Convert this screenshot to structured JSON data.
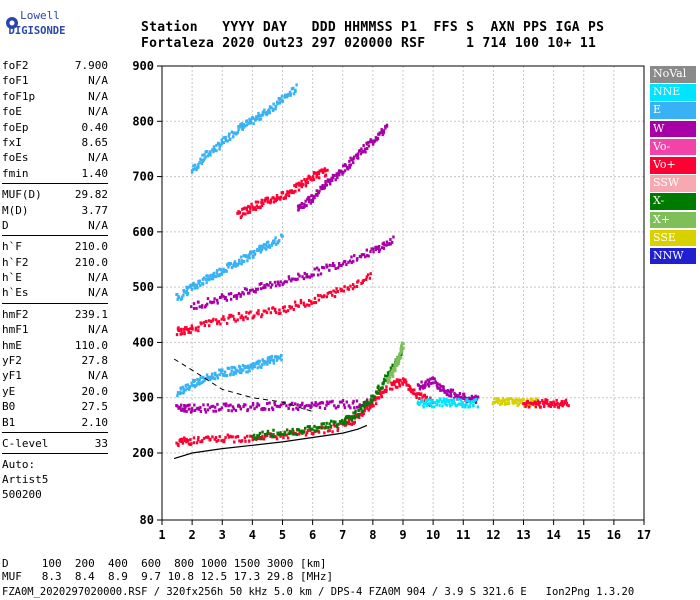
{
  "logo": {
    "line1": "Lowell",
    "line2": "DIGISONDE"
  },
  "header": {
    "line1": "Station   YYYY DAY   DDD HHMMSS P1  FFS S  AXN PPS IGA PS",
    "line2": "Fortaleza 2020 Out23 297 020000 RSF     1 714 100 10+ 11"
  },
  "params": {
    "group1": [
      {
        "name": "foF2",
        "value": "7.900"
      },
      {
        "name": "foF1",
        "value": "N/A"
      },
      {
        "name": "foF1p",
        "value": "N/A"
      },
      {
        "name": "foE",
        "value": "N/A"
      },
      {
        "name": "foEp",
        "value": "0.40"
      },
      {
        "name": "fxI",
        "value": "8.65"
      },
      {
        "name": "foEs",
        "value": "N/A"
      },
      {
        "name": "fmin",
        "value": "1.40"
      }
    ],
    "group2": [
      {
        "name": "MUF(D)",
        "value": "29.82"
      },
      {
        "name": "M(D)",
        "value": "3.77"
      },
      {
        "name": "D",
        "value": "N/A"
      }
    ],
    "group3": [
      {
        "name": "h`F",
        "value": "210.0"
      },
      {
        "name": "h`F2",
        "value": "210.0"
      },
      {
        "name": "h`E",
        "value": "N/A"
      },
      {
        "name": "h`Es",
        "value": "N/A"
      }
    ],
    "group4": [
      {
        "name": "hmF2",
        "value": "239.1"
      },
      {
        "name": "hmF1",
        "value": "N/A"
      },
      {
        "name": "hmE",
        "value": "110.0"
      },
      {
        "name": "yF2",
        "value": "27.8"
      },
      {
        "name": "yF1",
        "value": "N/A"
      },
      {
        "name": "yE",
        "value": "20.0"
      },
      {
        "name": "B0",
        "value": "27.5"
      },
      {
        "name": "B1",
        "value": "2.10"
      }
    ],
    "group5": [
      {
        "name": "C-level",
        "value": "33"
      }
    ],
    "auto": [
      "Auto:",
      "Artist5",
      "500200"
    ]
  },
  "legend": [
    {
      "label": "NoVal",
      "color": "#8a8a8a"
    },
    {
      "label": "NNE",
      "color": "#00e5ff"
    },
    {
      "label": "E",
      "color": "#39b1f5"
    },
    {
      "label": "W",
      "color": "#a600a6"
    },
    {
      "label": "Vo-",
      "color": "#f244a8"
    },
    {
      "label": "Vo+",
      "color": "#ff0033"
    },
    {
      "label": "SSW",
      "color": "#f7a8b0"
    },
    {
      "label": "X-",
      "color": "#007a00"
    },
    {
      "label": "X+",
      "color": "#7fbf5a"
    },
    {
      "label": "SSE",
      "color": "#d9d000"
    },
    {
      "label": "NNW",
      "color": "#2020d0"
    }
  ],
  "bottom": {
    "d_line": "D     100  200  400  600  800 1000 1500 3000 [km]",
    "muf_line": "MUF   8.3  8.4  8.9  9.7 10.8 12.5 17.3 29.8 [MHz]"
  },
  "footer": "FZA0M_2020297020000.RSF / 320fx256h 50 kHz 5.0 km / DPS-4 FZA0M 904 / 3.9 S 321.6 E   Ion2Png 1.3.20",
  "chart_data": {
    "type": "scatter",
    "xlim": [
      1,
      17
    ],
    "ylim": [
      80,
      900
    ],
    "x_ticks": [
      1,
      2,
      3,
      4,
      5,
      6,
      7,
      8,
      9,
      10,
      11,
      12,
      13,
      14,
      15,
      16,
      17
    ],
    "y_ticks": [
      80,
      200,
      300,
      400,
      500,
      600,
      700,
      800,
      900
    ],
    "grid": true,
    "traces": [
      {
        "color": "#39b1f5",
        "points": [
          [
            2.0,
            710
          ],
          [
            2.5,
            740
          ],
          [
            3.0,
            760
          ],
          [
            3.5,
            785
          ],
          [
            4.0,
            800
          ],
          [
            4.5,
            818
          ],
          [
            5.0,
            840
          ],
          [
            5.5,
            860
          ]
        ]
      },
      {
        "color": "#a600a6",
        "points": [
          [
            5.5,
            645
          ],
          [
            6.0,
            660
          ],
          [
            6.5,
            690
          ],
          [
            7.0,
            710
          ],
          [
            7.5,
            740
          ],
          [
            8.0,
            765
          ],
          [
            8.5,
            790
          ]
        ]
      },
      {
        "color": "#ff0033",
        "points": [
          [
            3.5,
            630
          ],
          [
            4.0,
            645
          ],
          [
            4.5,
            655
          ],
          [
            5.0,
            665
          ],
          [
            5.5,
            680
          ],
          [
            6.0,
            700
          ],
          [
            6.5,
            710
          ]
        ]
      },
      {
        "color": "#39b1f5",
        "points": [
          [
            1.5,
            480
          ],
          [
            2.0,
            500
          ],
          [
            2.5,
            515
          ],
          [
            3.0,
            530
          ],
          [
            3.5,
            545
          ],
          [
            4.0,
            560
          ],
          [
            4.5,
            575
          ],
          [
            5.0,
            590
          ]
        ]
      },
      {
        "color": "#a600a6",
        "points": [
          [
            2.0,
            465
          ],
          [
            3.0,
            480
          ],
          [
            4.0,
            495
          ],
          [
            5.0,
            510
          ],
          [
            6.0,
            525
          ],
          [
            7.0,
            545
          ],
          [
            8.0,
            565
          ],
          [
            8.7,
            585
          ]
        ]
      },
      {
        "color": "#ff0033",
        "points": [
          [
            1.5,
            420
          ],
          [
            2.0,
            425
          ],
          [
            3.0,
            440
          ],
          [
            4.0,
            450
          ],
          [
            5.0,
            460
          ],
          [
            6.0,
            475
          ],
          [
            7.0,
            495
          ],
          [
            8.0,
            520
          ]
        ]
      },
      {
        "color": "#39b1f5",
        "points": [
          [
            1.5,
            310
          ],
          [
            2.0,
            325
          ],
          [
            2.5,
            335
          ],
          [
            3.0,
            345
          ],
          [
            3.5,
            350
          ],
          [
            4.0,
            355
          ],
          [
            4.5,
            365
          ],
          [
            5.0,
            375
          ]
        ]
      },
      {
        "color": "#a600a6",
        "points": [
          [
            1.5,
            280
          ],
          [
            2.0,
            280
          ],
          [
            3.0,
            282
          ],
          [
            4.0,
            283
          ],
          [
            5.0,
            285
          ],
          [
            6.0,
            285
          ],
          [
            7.0,
            288
          ],
          [
            8.0,
            290
          ]
        ]
      },
      {
        "color": "#ff0033",
        "points": [
          [
            1.5,
            220
          ],
          [
            2.0,
            222
          ],
          [
            3.0,
            225
          ],
          [
            4.0,
            228
          ],
          [
            5.0,
            232
          ],
          [
            6.0,
            238
          ],
          [
            7.0,
            248
          ],
          [
            7.5,
            265
          ],
          [
            8.0,
            290
          ],
          [
            8.5,
            320
          ]
        ]
      },
      {
        "color": "#007a00",
        "points": [
          [
            4.0,
            230
          ],
          [
            5.0,
            236
          ],
          [
            6.0,
            245
          ],
          [
            7.0,
            255
          ],
          [
            7.5,
            272
          ],
          [
            8.0,
            300
          ],
          [
            8.5,
            340
          ],
          [
            9.0,
            380
          ]
        ]
      },
      {
        "color": "#7fbf5a",
        "points": [
          [
            8.5,
            330
          ],
          [
            8.7,
            350
          ],
          [
            8.9,
            375
          ],
          [
            9.0,
            395
          ]
        ]
      },
      {
        "color": "#ff0033",
        "points": [
          [
            8.6,
            320
          ],
          [
            9.0,
            330
          ],
          [
            9.5,
            305
          ],
          [
            10.0,
            290
          ]
        ]
      },
      {
        "color": "#a600a6",
        "points": [
          [
            9.5,
            320
          ],
          [
            10.0,
            330
          ],
          [
            10.5,
            310
          ],
          [
            11.0,
            300
          ],
          [
            11.5,
            295
          ]
        ]
      },
      {
        "color": "#00e5ff",
        "points": [
          [
            9.5,
            290
          ],
          [
            10.0,
            290
          ],
          [
            10.5,
            292
          ],
          [
            11.0,
            290
          ],
          [
            11.5,
            290
          ]
        ]
      },
      {
        "color": "#d9d000",
        "points": [
          [
            12.0,
            292
          ],
          [
            12.5,
            293
          ],
          [
            13.0,
            292
          ],
          [
            13.5,
            291
          ]
        ]
      },
      {
        "color": "#ff0033",
        "points": [
          [
            13.0,
            289
          ],
          [
            13.5,
            289
          ],
          [
            14.0,
            290
          ],
          [
            14.5,
            289
          ]
        ]
      }
    ],
    "profile_curve": [
      [
        1.4,
        190
      ],
      [
        2.0,
        200
      ],
      [
        3.0,
        208
      ],
      [
        4.0,
        214
      ],
      [
        5.0,
        220
      ],
      [
        6.0,
        228
      ],
      [
        7.0,
        236
      ],
      [
        7.5,
        243
      ],
      [
        7.8,
        250
      ]
    ],
    "dashed_curve": [
      [
        1.4,
        370
      ],
      [
        2.0,
        350
      ],
      [
        3.0,
        315
      ],
      [
        4.0,
        300
      ],
      [
        5.0,
        292
      ],
      [
        6.0,
        275
      ]
    ]
  }
}
